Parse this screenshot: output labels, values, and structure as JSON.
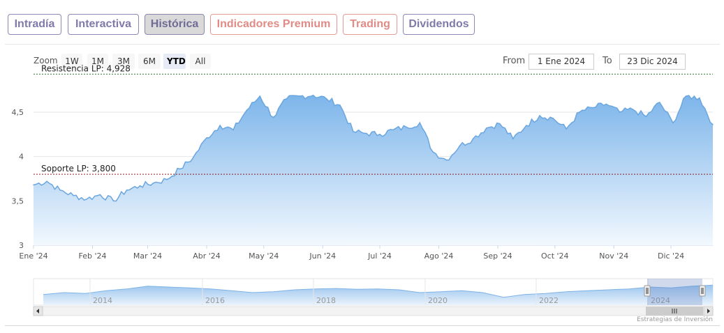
{
  "tabs": [
    {
      "label": "Intradía",
      "style": "normal"
    },
    {
      "label": "Interactiva",
      "style": "normal"
    },
    {
      "label": "Histórica",
      "style": "active"
    },
    {
      "label": "Indicadores Premium",
      "style": "premium"
    },
    {
      "label": "Trading",
      "style": "premium"
    },
    {
      "label": "Dividendos",
      "style": "normal"
    }
  ],
  "zoom": {
    "label": "Zoom",
    "buttons": [
      "1W",
      "1M",
      "3M",
      "6M",
      "YTD",
      "All"
    ],
    "selected": "YTD"
  },
  "range": {
    "from_label": "From",
    "from_value": "1 Ene 2024",
    "to_label": "To",
    "to_value": "23 Dic 2024"
  },
  "credits": "Estrategias de Inversión",
  "colors": {
    "line": "#6aa6df",
    "area_top": "#7db5ea",
    "area_bottom": "#f2f8fe",
    "resistance": "#2e7d32",
    "support": "#8b1a1a"
  },
  "chart_data": {
    "type": "area",
    "x": [
      "2024-01-01",
      "2024-01-08",
      "2024-01-15",
      "2024-01-22",
      "2024-01-29",
      "2024-02-05",
      "2024-02-12",
      "2024-02-19",
      "2024-02-26",
      "2024-03-04",
      "2024-03-11",
      "2024-03-18",
      "2024-03-25",
      "2024-04-01",
      "2024-04-08",
      "2024-04-15",
      "2024-04-22",
      "2024-04-29",
      "2024-05-06",
      "2024-05-13",
      "2024-05-20",
      "2024-05-27",
      "2024-06-03",
      "2024-06-10",
      "2024-06-17",
      "2024-06-24",
      "2024-07-01",
      "2024-07-08",
      "2024-07-15",
      "2024-07-22",
      "2024-07-29",
      "2024-08-05",
      "2024-08-12",
      "2024-08-19",
      "2024-08-26",
      "2024-09-02",
      "2024-09-09",
      "2024-09-16",
      "2024-09-23",
      "2024-09-30",
      "2024-10-07",
      "2024-10-14",
      "2024-10-21",
      "2024-10-28",
      "2024-11-04",
      "2024-11-11",
      "2024-11-18",
      "2024-11-25",
      "2024-12-02",
      "2024-12-09",
      "2024-12-16",
      "2024-12-23"
    ],
    "y": [
      3.68,
      3.72,
      3.62,
      3.56,
      3.52,
      3.57,
      3.5,
      3.62,
      3.67,
      3.7,
      3.74,
      3.86,
      3.99,
      4.21,
      4.35,
      4.3,
      4.52,
      4.68,
      4.44,
      4.65,
      4.68,
      4.69,
      4.65,
      4.58,
      4.28,
      4.26,
      4.25,
      4.3,
      4.33,
      4.38,
      4.05,
      3.96,
      4.12,
      4.2,
      4.32,
      4.37,
      4.2,
      4.35,
      4.46,
      4.43,
      4.31,
      4.5,
      4.55,
      4.59,
      4.5,
      4.53,
      4.45,
      4.61,
      4.38,
      4.68,
      4.66,
      4.36
    ],
    "ylim": [
      3,
      4.9
    ],
    "yticks": [
      "3",
      "3,5",
      "4",
      "4,5"
    ],
    "ytick_values": [
      3,
      3.5,
      4,
      4.5
    ],
    "xticks": [
      "Ene '24",
      "Feb '24",
      "Mar '24",
      "Abr '24",
      "May '24",
      "Jun '24",
      "Jul '24",
      "Ago '24",
      "Sep '24",
      "Oct '24",
      "Nov '24",
      "Dic '24"
    ],
    "xtick_dates": [
      "2024-01-01",
      "2024-02-01",
      "2024-03-01",
      "2024-04-01",
      "2024-05-01",
      "2024-06-01",
      "2024-07-01",
      "2024-08-01",
      "2024-09-01",
      "2024-10-01",
      "2024-11-01",
      "2024-12-01"
    ],
    "annotations": [
      {
        "label": "Resistencia LP: 4,928",
        "value": 4.928,
        "color": "#2e7d32"
      },
      {
        "label": "Soporte LP: 3,800",
        "value": 3.8,
        "color": "#8b1a1a"
      }
    ],
    "grid": true,
    "navigator": {
      "years": [
        "2014",
        "2016",
        "2018",
        "2020",
        "2022",
        "2024"
      ],
      "series": [
        3.9,
        4.0,
        3.95,
        4.1,
        4.2,
        4.35,
        4.3,
        4.25,
        4.2,
        4.1,
        4.0,
        4.05,
        4.15,
        4.2,
        4.22,
        4.18,
        4.2,
        4.15,
        4.0,
        4.05,
        4.1,
        4.0,
        3.75,
        3.9,
        3.95,
        4.05,
        4.1,
        4.15,
        4.2,
        4.3,
        4.25,
        4.35,
        4.4
      ]
    }
  }
}
